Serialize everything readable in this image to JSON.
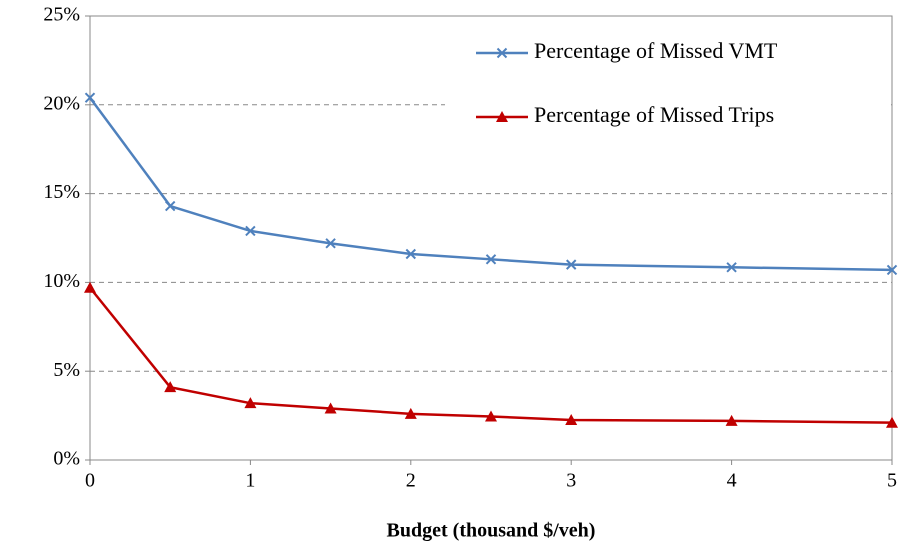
{
  "chart_data": {
    "type": "line",
    "x_label": "Budget (thousand $/veh)",
    "x": [
      0,
      0.5,
      1,
      1.5,
      2,
      2.5,
      3,
      4,
      5
    ],
    "series": [
      {
        "name": "Percentage of Missed VMT",
        "color": "#4f81bd",
        "marker": "x",
        "values": [
          20.4,
          14.3,
          12.9,
          12.2,
          11.6,
          11.3,
          11.0,
          10.85,
          10.7
        ]
      },
      {
        "name": "Percentage of Missed Trips",
        "color": "#c00000",
        "marker": "triangle",
        "values": [
          9.7,
          4.1,
          3.2,
          2.9,
          2.6,
          2.45,
          2.25,
          2.2,
          2.1
        ]
      }
    ],
    "xlim": [
      0,
      5
    ],
    "xticks": [
      0,
      1,
      2,
      3,
      4,
      5
    ],
    "ylim": [
      0,
      25
    ],
    "yticks": [
      {
        "value": 0,
        "label": "0%"
      },
      {
        "value": 5,
        "label": "5%"
      },
      {
        "value": 10,
        "label": "10%"
      },
      {
        "value": 15,
        "label": "15%"
      },
      {
        "value": 20,
        "label": "20%"
      },
      {
        "value": 25,
        "label": "25%"
      }
    ],
    "grid": true,
    "legend": "upper right"
  }
}
